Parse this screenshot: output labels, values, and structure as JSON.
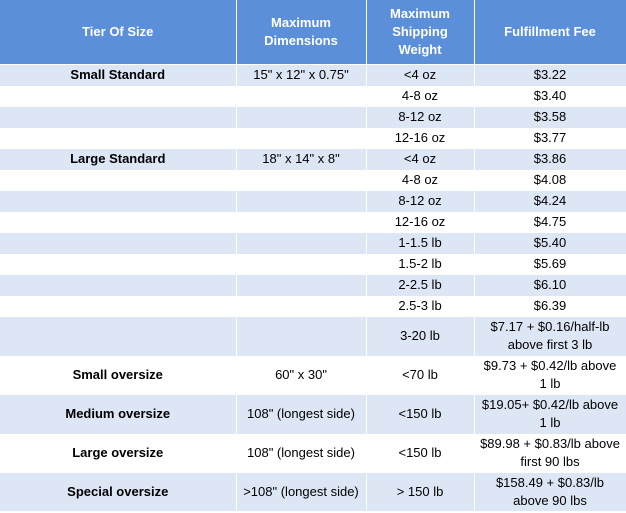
{
  "table": {
    "headers": [
      "Tier Of Size",
      "Maximum Dimensions",
      "Maximum Shipping Weight",
      "Fulfillment Fee"
    ],
    "rows": [
      {
        "tier": "Small Standard",
        "dims": "15\" x 12\" x 0.75\"",
        "weight": "<4 oz",
        "fee": "$3.22"
      },
      {
        "tier": "",
        "dims": "",
        "weight": "4-8 oz",
        "fee": "$3.40"
      },
      {
        "tier": "",
        "dims": "",
        "weight": "8-12 oz",
        "fee": "$3.58"
      },
      {
        "tier": "",
        "dims": "",
        "weight": "12-16 oz",
        "fee": "$3.77"
      },
      {
        "tier": "Large Standard",
        "dims": "18\" x 14\" x 8\"",
        "weight": "<4 oz",
        "fee": "$3.86"
      },
      {
        "tier": "",
        "dims": "",
        "weight": "4-8 oz",
        "fee": "$4.08"
      },
      {
        "tier": "",
        "dims": "",
        "weight": "8-12 oz",
        "fee": "$4.24"
      },
      {
        "tier": "",
        "dims": "",
        "weight": "12-16 oz",
        "fee": "$4.75"
      },
      {
        "tier": "",
        "dims": "",
        "weight": "1-1.5 lb",
        "fee": "$5.40"
      },
      {
        "tier": "",
        "dims": "",
        "weight": "1.5-2 lb",
        "fee": "$5.69"
      },
      {
        "tier": "",
        "dims": "",
        "weight": "2-2.5 lb",
        "fee": "$6.10"
      },
      {
        "tier": "",
        "dims": "",
        "weight": "2.5-3 lb",
        "fee": "$6.39"
      },
      {
        "tier": "",
        "dims": "",
        "weight": "3-20 lb",
        "fee": "$7.17 + $0.16/half-lb above first 3 lb"
      },
      {
        "tier": "Small oversize",
        "dims": "60\" x 30\"",
        "weight": "<70 lb",
        "fee": "$9.73 + $0.42/lb above 1 lb"
      },
      {
        "tier": "Medium oversize",
        "dims": "108\" (longest side)",
        "weight": "<150 lb",
        "fee": "$19.05+ $0.42/lb above 1 lb"
      },
      {
        "tier": "Large oversize",
        "dims": "108\" (longest side)",
        "weight": "<150 lb",
        "fee": "$89.98 + $0.83/lb above first 90 lbs"
      },
      {
        "tier": "Special oversize",
        "dims": ">108\" (longest side)",
        "weight": "> 150 lb",
        "fee": "$158.49 + $0.83/lb above 90 lbs"
      }
    ]
  }
}
